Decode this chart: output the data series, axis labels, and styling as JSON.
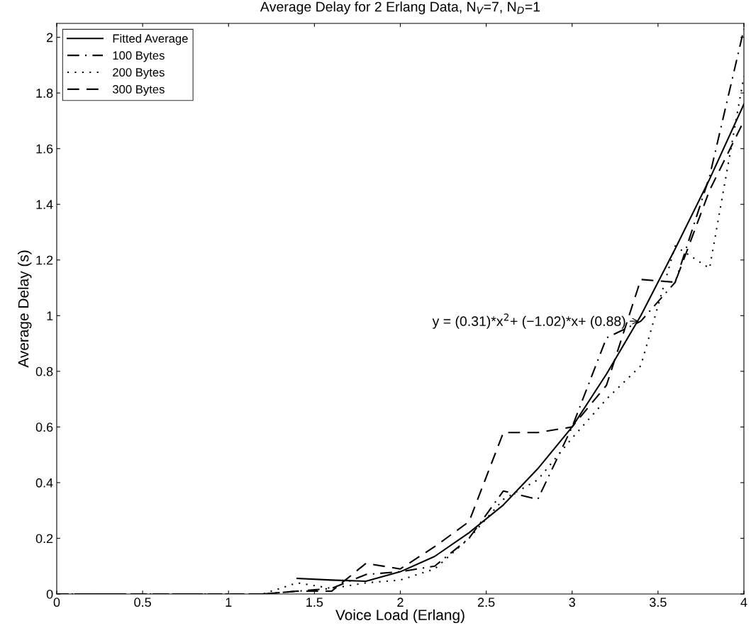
{
  "chart_data": {
    "type": "line",
    "title": "Average Delay for 2 Erlang Data, N$_{V}$=7, N$_{D}$=1",
    "xlabel": "Voice Load (Erlang)",
    "ylabel": "Average Delay (s)",
    "series": [
      {
        "name": "Fitted Average",
        "color": "#000000",
        "line_style": "solid",
        "x": [
          1.4,
          1.6,
          1.8,
          2.0,
          2.2,
          2.4,
          2.6,
          2.8,
          3.0,
          3.2,
          3.4,
          3.6,
          3.8,
          4.0
        ],
        "values": [
          0.056,
          0.05,
          0.046,
          0.08,
          0.135,
          0.22,
          0.32,
          0.45,
          0.6,
          0.79,
          1.0,
          1.24,
          1.49,
          1.76
        ]
      },
      {
        "name": "100 Bytes",
        "color": "#000000",
        "line_style": "dashdot",
        "x": [
          0,
          0.2,
          0.4,
          0.6,
          0.8,
          1.0,
          1.2,
          1.4,
          1.6,
          1.8,
          2.0,
          2.2,
          2.4,
          2.6,
          2.8,
          3.0,
          3.2,
          3.4,
          3.6,
          3.8,
          4.0
        ],
        "values": [
          0,
          0,
          0,
          0,
          0,
          0,
          0,
          0.01,
          0.02,
          0.07,
          0.08,
          0.1,
          0.2,
          0.37,
          0.34,
          0.6,
          0.92,
          0.98,
          1.12,
          1.5,
          2.03
        ]
      },
      {
        "name": "200 Bytes",
        "color": "#000000",
        "line_style": "dotted",
        "x": [
          0,
          0.2,
          0.4,
          0.6,
          0.8,
          1.0,
          1.2,
          1.4,
          1.6,
          1.8,
          2.0,
          2.2,
          2.4,
          2.6,
          2.8,
          3.0,
          3.2,
          3.4,
          3.6,
          3.8,
          4.0
        ],
        "values": [
          0,
          0,
          0,
          0,
          0,
          0,
          0,
          0.04,
          0.02,
          0.04,
          0.05,
          0.09,
          0.2,
          0.34,
          0.41,
          0.56,
          0.7,
          0.82,
          1.25,
          1.17,
          1.86
        ]
      },
      {
        "name": "300 Bytes",
        "color": "#000000",
        "line_style": "dashed",
        "x": [
          0,
          0.2,
          0.4,
          0.6,
          0.8,
          1.0,
          1.2,
          1.4,
          1.6,
          1.8,
          2.0,
          2.2,
          2.4,
          2.6,
          2.8,
          3.0,
          3.2,
          3.4,
          3.6,
          3.8,
          4.0
        ],
        "values": [
          0,
          0,
          0,
          0,
          0,
          0,
          0,
          0.01,
          0.01,
          0.11,
          0.09,
          0.17,
          0.26,
          0.58,
          0.58,
          0.6,
          0.75,
          1.13,
          1.12,
          1.45,
          1.7
        ]
      }
    ],
    "annotations": [
      {
        "text": "y = (0.31)*x$^{2}$+ (−1.02)*x+ (0.88)",
        "x": 3.4,
        "y": 0.98
      }
    ],
    "xlim": [
      0,
      4
    ],
    "ylim": [
      0,
      2.05
    ],
    "xticks": [
      0,
      0.5,
      1,
      1.5,
      2,
      2.5,
      3,
      3.5,
      4
    ],
    "yticks": [
      0,
      0.2,
      0.4,
      0.6,
      0.8,
      1,
      1.2,
      1.4,
      1.6,
      1.8,
      2
    ],
    "legend": "top left",
    "grid": false
  }
}
